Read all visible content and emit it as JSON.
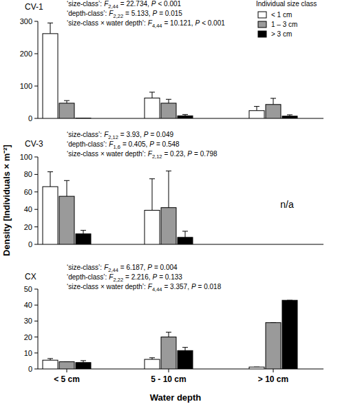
{
  "chart_data": [
    {
      "type": "bar",
      "title": "CV-1",
      "categories": [
        "< 5 cm",
        "5 - 10 cm",
        "> 10 cm"
      ],
      "series": [
        {
          "name": "< 1 cm",
          "color": "#ffffff",
          "values": [
            262,
            63,
            24
          ],
          "errors": [
            33,
            18,
            13
          ]
        },
        {
          "name": "1 – 3 cm",
          "color": "#9a9a9a",
          "values": [
            47,
            47,
            43
          ],
          "errors": [
            8,
            12,
            19
          ]
        },
        {
          "name": "> 3 cm",
          "color": "#000000",
          "values": [
            1,
            8,
            7
          ],
          "errors": [
            0,
            4,
            4
          ]
        }
      ],
      "ylim": [
        0,
        300
      ],
      "yticks": [
        0,
        100,
        200,
        300
      ],
      "tick_labels": "y",
      "legend": "upper right",
      "legend_title": "Individual size class",
      "stats": [
        {
          "term": "‘size-class’:",
          "f": "F",
          "df": "2,44",
          "f_value": "= 22.734,",
          "p": "P",
          "p_value": "< 0.001"
        },
        {
          "term": "‘depth-class’:",
          "f": "F",
          "df": "2,22",
          "f_value": "= 5.133,",
          "p": "P",
          "p_value": "= 0.015"
        },
        {
          "term": "‘size-class × water depth’:",
          "f": "F",
          "df": "4,44",
          "f_value": "= 10.121,",
          "p": "P",
          "p_value": "< 0.001"
        }
      ]
    },
    {
      "type": "bar",
      "title": "CV-3",
      "categories": [
        "< 5 cm",
        "5 - 10 cm",
        "> 10 cm"
      ],
      "series": [
        {
          "name": "< 1 cm",
          "color": "#ffffff",
          "values": [
            66,
            39,
            null
          ],
          "errors": [
            17,
            36,
            null
          ]
        },
        {
          "name": "1 – 3 cm",
          "color": "#9a9a9a",
          "values": [
            55,
            42,
            null
          ],
          "errors": [
            18,
            42,
            null
          ]
        },
        {
          "name": "> 3 cm",
          "color": "#000000",
          "values": [
            12,
            8,
            null
          ],
          "errors": [
            4,
            7,
            null
          ]
        }
      ],
      "ylim": [
        0,
        100
      ],
      "yticks": [
        0,
        20,
        40,
        60,
        80,
        100
      ],
      "tick_labels": "y",
      "y_label": "Density [Individuals × m⁻²]",
      "annotations": [
        {
          "text": "n/a"
        }
      ],
      "stats": [
        {
          "term": "‘size-class’:",
          "f": "F",
          "df": "2,12",
          "f_value": "= 3.93,",
          "p": "P",
          "p_value": "= 0.049"
        },
        {
          "term": "‘depth-class’:",
          "f": "F",
          "df": "1,6",
          "f_value": "= 0.405,",
          "p": "P",
          "p_value": "= 0.548"
        },
        {
          "term": "‘size-class × water depth’:",
          "f": "F",
          "df": "2,12",
          "f_value": "= 0.23,",
          "p": "P",
          "p_value": "= 0.798"
        }
      ]
    },
    {
      "type": "bar",
      "title": "CX",
      "categories": [
        "< 5 cm",
        "5 - 10 cm",
        "> 10 cm"
      ],
      "series": [
        {
          "name": "< 1 cm",
          "color": "#ffffff",
          "values": [
            5.5,
            6,
            1.2
          ],
          "errors": [
            1,
            1,
            0
          ]
        },
        {
          "name": "1 – 3 cm",
          "color": "#9a9a9a",
          "values": [
            4.5,
            20,
            29
          ],
          "errors": [
            0,
            3,
            0
          ]
        },
        {
          "name": "> 3 cm",
          "color": "#000000",
          "values": [
            4,
            11.5,
            43
          ],
          "errors": [
            1.2,
            2,
            0
          ]
        }
      ],
      "ylim": [
        0,
        50
      ],
      "yticks": [
        0,
        10,
        20,
        30,
        40,
        50
      ],
      "x_label": "Water depth",
      "stats": [
        {
          "term": "‘size-class’:",
          "f": "F",
          "df": "2,44",
          "f_value": "= 6.187,",
          "p": "P",
          "p_value": "= 0.004"
        },
        {
          "term": "‘depth-class’:",
          "f": "F",
          "df": "2,22",
          "f_value": "= 2.216,",
          "p": "P",
          "p_value": "= 0.133"
        },
        {
          "term": "‘size-class × water depth’:",
          "f": "F",
          "df": "4,44",
          "f_value": "= 3.357,",
          "p": "P",
          "p_value": "= 0.018"
        }
      ]
    }
  ]
}
